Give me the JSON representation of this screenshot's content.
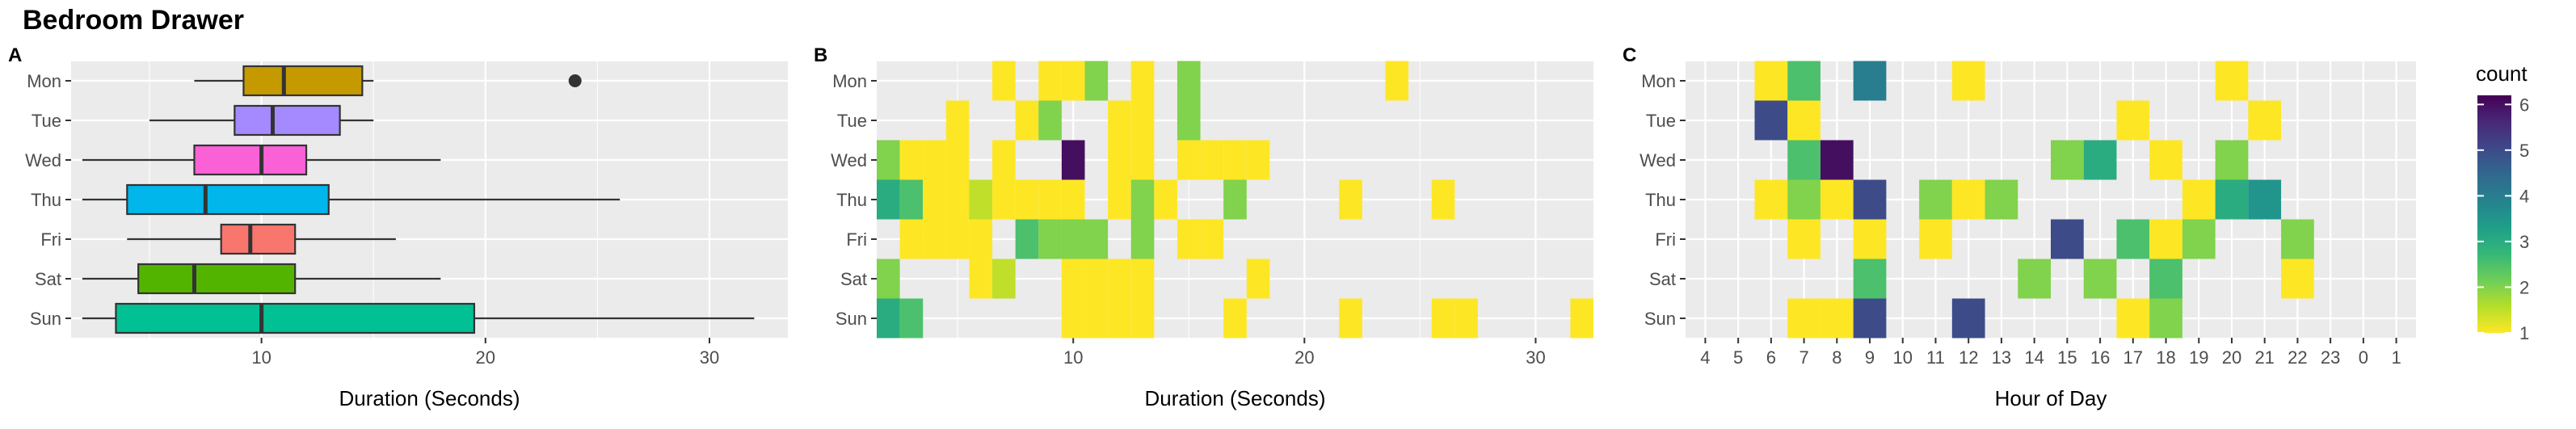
{
  "title": "Bedroom Drawer",
  "days": [
    "Mon",
    "Tue",
    "Wed",
    "Thu",
    "Fri",
    "Sat",
    "Sun"
  ],
  "colors": {
    "Mon": "#C49A00",
    "Tue": "#A58AFF",
    "Wed": "#FB61D7",
    "Thu": "#00B6EB",
    "Fri": "#F8766D",
    "Sat": "#53B400",
    "Sun": "#00C094",
    "panel_bg": "#EBEBEB",
    "grid": "#FFFFFF"
  },
  "chart_data": [
    {
      "panel": "A",
      "type": "boxplot",
      "xlabel": "Duration (Seconds)",
      "xlim": [
        1.5,
        33.5
      ],
      "xticks": [
        "10",
        "20",
        "30"
      ],
      "categories": [
        "Mon",
        "Tue",
        "Wed",
        "Thu",
        "Fri",
        "Sat",
        "Sun"
      ],
      "boxes": [
        {
          "day": "Mon",
          "wlo": 7,
          "q1": 9.2,
          "median": 11,
          "q3": 14.5,
          "whi": 15,
          "outliers": [
            24
          ]
        },
        {
          "day": "Tue",
          "wlo": 5,
          "q1": 8.8,
          "median": 10.5,
          "q3": 13.5,
          "whi": 15,
          "outliers": []
        },
        {
          "day": "Wed",
          "wlo": 2,
          "q1": 7,
          "median": 10,
          "q3": 12,
          "whi": 18,
          "outliers": []
        },
        {
          "day": "Thu",
          "wlo": 2,
          "q1": 4,
          "median": 7.5,
          "q3": 13,
          "whi": 26,
          "outliers": []
        },
        {
          "day": "Fri",
          "wlo": 4,
          "q1": 8.2,
          "median": 9.5,
          "q3": 11.5,
          "whi": 16,
          "outliers": []
        },
        {
          "day": "Sat",
          "wlo": 2,
          "q1": 4.5,
          "median": 7,
          "q3": 11.5,
          "whi": 18,
          "outliers": []
        },
        {
          "day": "Sun",
          "wlo": 2,
          "q1": 3.5,
          "median": 10,
          "q3": 19.5,
          "whi": 32,
          "outliers": []
        }
      ]
    },
    {
      "panel": "B",
      "type": "heatmap",
      "xlabel": "Duration (Seconds)",
      "xlim": [
        1.5,
        32.5
      ],
      "xticks": [
        "10",
        "20",
        "30"
      ],
      "legend": {
        "title": "count",
        "min": 1,
        "max": 6.2,
        "ticks": [
          "1",
          "2",
          "3",
          "4",
          "5",
          "6"
        ]
      },
      "cells": [
        [
          "Mon",
          7,
          1
        ],
        [
          "Mon",
          9,
          1
        ],
        [
          "Mon",
          10,
          1
        ],
        [
          "Mon",
          11,
          2
        ],
        [
          "Mon",
          13,
          1
        ],
        [
          "Mon",
          15,
          2
        ],
        [
          "Mon",
          24,
          1
        ],
        [
          "Tue",
          5,
          1
        ],
        [
          "Tue",
          8,
          1
        ],
        [
          "Tue",
          9,
          2
        ],
        [
          "Tue",
          12,
          1
        ],
        [
          "Tue",
          13,
          1
        ],
        [
          "Tue",
          15,
          2
        ],
        [
          "Wed",
          2,
          2
        ],
        [
          "Wed",
          3,
          1
        ],
        [
          "Wed",
          4,
          1
        ],
        [
          "Wed",
          5,
          1
        ],
        [
          "Wed",
          7,
          1
        ],
        [
          "Wed",
          10,
          6
        ],
        [
          "Wed",
          12,
          1
        ],
        [
          "Wed",
          13,
          1
        ],
        [
          "Wed",
          15,
          1
        ],
        [
          "Wed",
          16,
          1
        ],
        [
          "Wed",
          17,
          1
        ],
        [
          "Wed",
          18,
          1
        ],
        [
          "Thu",
          2,
          3
        ],
        [
          "Thu",
          3,
          2.5
        ],
        [
          "Thu",
          4,
          1
        ],
        [
          "Thu",
          5,
          1
        ],
        [
          "Thu",
          6,
          1.5
        ],
        [
          "Thu",
          7,
          1
        ],
        [
          "Thu",
          8,
          1
        ],
        [
          "Thu",
          9,
          1
        ],
        [
          "Thu",
          10,
          1
        ],
        [
          "Thu",
          12,
          1
        ],
        [
          "Thu",
          13,
          2
        ],
        [
          "Thu",
          14,
          1
        ],
        [
          "Thu",
          17,
          2
        ],
        [
          "Thu",
          22,
          1
        ],
        [
          "Thu",
          26,
          1
        ],
        [
          "Fri",
          3,
          1
        ],
        [
          "Fri",
          4,
          1
        ],
        [
          "Fri",
          5,
          1
        ],
        [
          "Fri",
          6,
          1
        ],
        [
          "Fri",
          8,
          2.5
        ],
        [
          "Fri",
          9,
          2
        ],
        [
          "Fri",
          10,
          2
        ],
        [
          "Fri",
          11,
          2
        ],
        [
          "Fri",
          13,
          2
        ],
        [
          "Fri",
          15,
          1
        ],
        [
          "Fri",
          16,
          1
        ],
        [
          "Sat",
          2,
          2
        ],
        [
          "Sat",
          6,
          1
        ],
        [
          "Sat",
          7,
          1.5
        ],
        [
          "Sat",
          10,
          1
        ],
        [
          "Sat",
          11,
          1
        ],
        [
          "Sat",
          12,
          1
        ],
        [
          "Sat",
          13,
          1
        ],
        [
          "Sat",
          18,
          1
        ],
        [
          "Sun",
          2,
          3
        ],
        [
          "Sun",
          3,
          2.5
        ],
        [
          "Sun",
          10,
          1
        ],
        [
          "Sun",
          11,
          1
        ],
        [
          "Sun",
          12,
          1
        ],
        [
          "Sun",
          13,
          1
        ],
        [
          "Sun",
          17,
          1
        ],
        [
          "Sun",
          22,
          1
        ],
        [
          "Sun",
          26,
          1
        ],
        [
          "Sun",
          27,
          1
        ],
        [
          "Sun",
          32,
          1
        ]
      ]
    },
    {
      "panel": "C",
      "type": "heatmap",
      "xlabel": "Hour of Day",
      "xticks": [
        "4",
        "5",
        "6",
        "7",
        "8",
        "9",
        "10",
        "11",
        "12",
        "13",
        "14",
        "15",
        "16",
        "17",
        "18",
        "19",
        "20",
        "21",
        "22",
        "23",
        "0",
        "1"
      ],
      "legend": {
        "title": "count",
        "min": 1,
        "max": 6.2,
        "ticks": [
          "1",
          "2",
          "3",
          "4",
          "5",
          "6"
        ]
      },
      "cells": [
        [
          "Mon",
          "6",
          1
        ],
        [
          "Mon",
          "7",
          2.5
        ],
        [
          "Mon",
          "9",
          4
        ],
        [
          "Mon",
          "12",
          1
        ],
        [
          "Mon",
          "20",
          1
        ],
        [
          "Tue",
          "6",
          5
        ],
        [
          "Tue",
          "7",
          1
        ],
        [
          "Tue",
          "17",
          1
        ],
        [
          "Tue",
          "21",
          1
        ],
        [
          "Wed",
          "7",
          2.5
        ],
        [
          "Wed",
          "8",
          6
        ],
        [
          "Wed",
          "15",
          2
        ],
        [
          "Wed",
          "16",
          3
        ],
        [
          "Wed",
          "18",
          1
        ],
        [
          "Wed",
          "20",
          2
        ],
        [
          "Thu",
          "6",
          1
        ],
        [
          "Thu",
          "7",
          2
        ],
        [
          "Thu",
          "8",
          1
        ],
        [
          "Thu",
          "9",
          5
        ],
        [
          "Thu",
          "11",
          2
        ],
        [
          "Thu",
          "12",
          1
        ],
        [
          "Thu",
          "13",
          2
        ],
        [
          "Thu",
          "19",
          1
        ],
        [
          "Thu",
          "20",
          3
        ],
        [
          "Thu",
          "21",
          3.5
        ],
        [
          "Fri",
          "7",
          1
        ],
        [
          "Fri",
          "9",
          1
        ],
        [
          "Fri",
          "11",
          1
        ],
        [
          "Fri",
          "15",
          5
        ],
        [
          "Fri",
          "17",
          2.5
        ],
        [
          "Fri",
          "18",
          1
        ],
        [
          "Fri",
          "19",
          2
        ],
        [
          "Fri",
          "22",
          2
        ],
        [
          "Sat",
          "9",
          2.5
        ],
        [
          "Sat",
          "14",
          2
        ],
        [
          "Sat",
          "16",
          2
        ],
        [
          "Sat",
          "18",
          2.5
        ],
        [
          "Sat",
          "22",
          1
        ],
        [
          "Sun",
          "7",
          1
        ],
        [
          "Sun",
          "8",
          1
        ],
        [
          "Sun",
          "9",
          5
        ],
        [
          "Sun",
          "12",
          5
        ],
        [
          "Sun",
          "17",
          1
        ],
        [
          "Sun",
          "18",
          2
        ]
      ]
    }
  ],
  "panel_labels": [
    "A",
    "B",
    "C"
  ]
}
